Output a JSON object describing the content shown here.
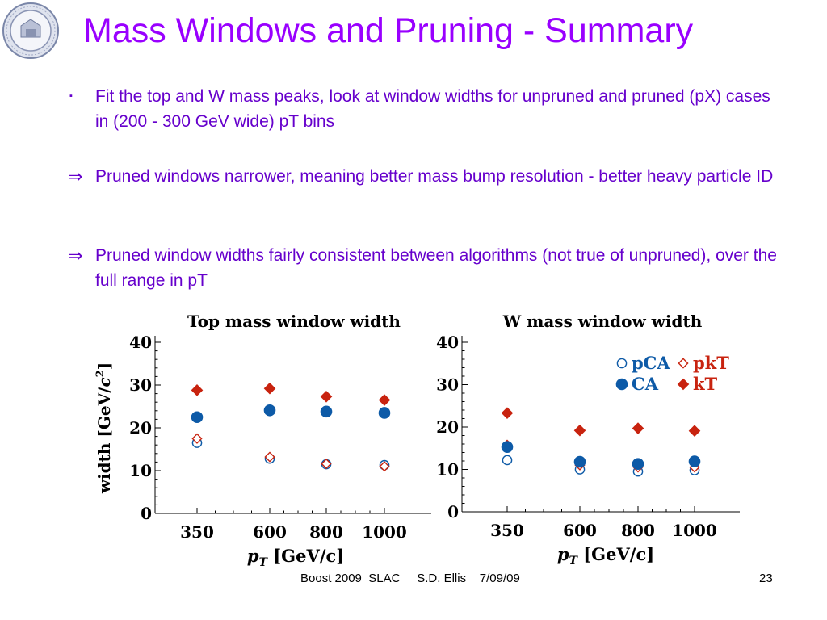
{
  "slide": {
    "title": "Mass Windows and Pruning - Summary",
    "bullets": [
      {
        "marker": "▪",
        "text": "Fit the top and W mass peaks, look at window widths for unpruned and pruned (pX) cases in (200 - 300 GeV wide) pT bins"
      },
      {
        "marker": "⇒",
        "text": "Pruned windows narrower, meaning better mass bump resolution - better heavy particle ID"
      },
      {
        "marker": "⇒",
        "text": "Pruned window widths fairly consistent between algorithms (not true of unpruned), over the full range in pT"
      }
    ],
    "footer": "Boost 2009  SLAC     S.D. Ellis    7/09/09",
    "page_number": "23",
    "colors": {
      "title": "#9900ff",
      "text": "#6600cc",
      "blue": "#0d5aa7",
      "red": "#c8230f"
    }
  },
  "chart_data": [
    {
      "type": "scatter",
      "title": "Top mass window width",
      "xlabel": "pT [GeV/c]",
      "ylabel": "width [GeV/c2]",
      "categories": [
        "350",
        "600",
        "800",
        "1000"
      ],
      "yticks": [
        "0",
        "10",
        "20",
        "30",
        "40"
      ],
      "ylim": [
        0,
        40
      ],
      "grid": false,
      "legend": "none",
      "series": [
        {
          "name": "pCA",
          "marker": "open-circle",
          "color": "#0d5aa7",
          "values": [
            16.5,
            12.8,
            11.5,
            11.3
          ]
        },
        {
          "name": "CA",
          "marker": "filled-circle",
          "color": "#0d5aa7",
          "values": [
            22.5,
            24.1,
            23.8,
            23.5
          ]
        },
        {
          "name": "pkT",
          "marker": "open-diamond",
          "color": "#c8230f",
          "values": [
            17.5,
            13.2,
            11.6,
            11.0
          ]
        },
        {
          "name": "kT",
          "marker": "filled-diamond",
          "color": "#c8230f",
          "values": [
            28.8,
            29.2,
            27.3,
            26.5
          ]
        }
      ]
    },
    {
      "type": "scatter",
      "title": "W mass window width",
      "xlabel": "pT [GeV/c]",
      "ylabel": "",
      "categories": [
        "350",
        "600",
        "800",
        "1000"
      ],
      "yticks": [
        "0",
        "10",
        "20",
        "30",
        "40"
      ],
      "ylim": [
        0,
        40
      ],
      "grid": false,
      "legend": "top-right",
      "series": [
        {
          "name": "pCA",
          "marker": "open-circle",
          "color": "#0d5aa7",
          "values": [
            12.2,
            10.0,
            9.5,
            9.8
          ]
        },
        {
          "name": "CA",
          "marker": "filled-circle",
          "color": "#0d5aa7",
          "values": [
            15.3,
            11.8,
            11.3,
            11.9
          ]
        },
        {
          "name": "pkT",
          "marker": "open-diamond",
          "color": "#c8230f",
          "values": [
            15.8,
            11.0,
            10.5,
            10.5
          ]
        },
        {
          "name": "kT",
          "marker": "filled-diamond",
          "color": "#c8230f",
          "values": [
            23.3,
            19.2,
            19.7,
            19.1
          ]
        }
      ]
    }
  ]
}
